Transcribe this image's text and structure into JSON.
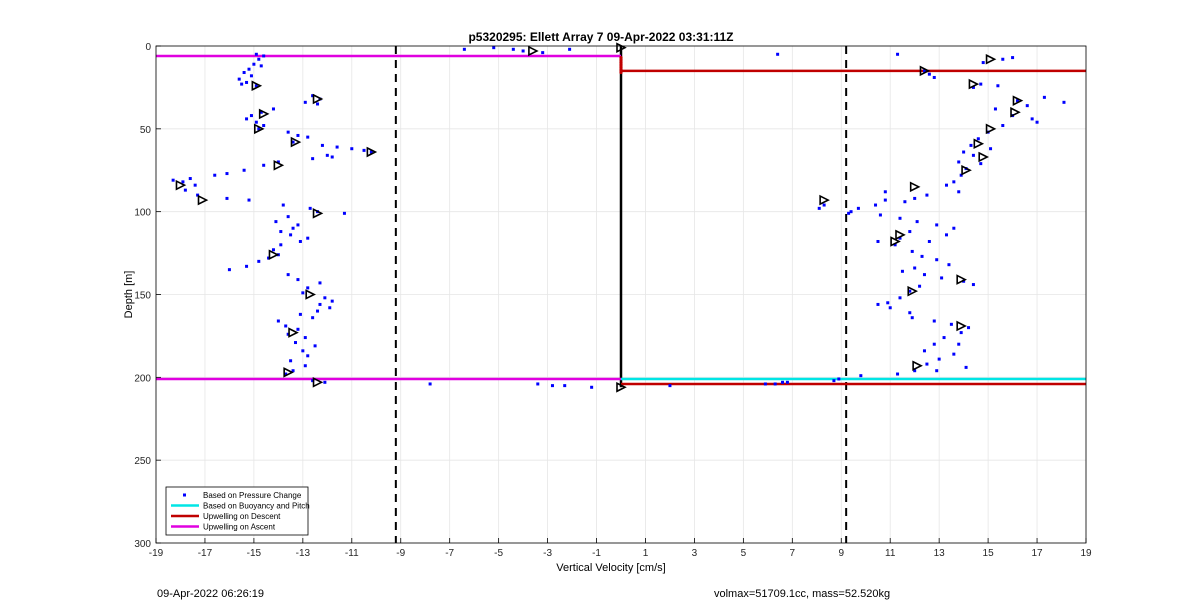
{
  "chart_data": {
    "type": "scatter",
    "title": "p5320295: Ellett Array 7 09-Apr-2022 03:31:11Z",
    "xlabel": "Vertical Velocity [cm/s]",
    "ylabel": "Depth [m]",
    "xlim": [
      -19,
      19
    ],
    "ylim": [
      0,
      300
    ],
    "y_reversed": true,
    "grid": true,
    "xticks": [
      -19,
      -17,
      -15,
      -13,
      -11,
      -9,
      -7,
      -5,
      -3,
      -1,
      1,
      3,
      5,
      7,
      9,
      11,
      13,
      15,
      17,
      19
    ],
    "yticks": [
      0,
      50,
      100,
      150,
      200,
      250,
      300
    ],
    "legend_position": "bottom-left",
    "legend": [
      {
        "label": "Based on Pressure Change",
        "color": "#0000ff",
        "kind": "marker"
      },
      {
        "label": "Based on Buoyancy and Pitch",
        "color": "#00e5e5",
        "kind": "line"
      },
      {
        "label": "Upwelling on Descent",
        "color": "#c00000",
        "kind": "line"
      },
      {
        "label": "Upwelling on Ascent",
        "color": "#e000e0",
        "kind": "line"
      }
    ],
    "vlines": [
      {
        "x": -9.2,
        "style": "dashed",
        "color": "#000000"
      },
      {
        "x": 9.2,
        "style": "dashed",
        "color": "#000000"
      },
      {
        "x": 0,
        "style": "solid",
        "color": "#000000",
        "y1": 0,
        "y2": 206
      }
    ],
    "hlines": [
      {
        "y": 6,
        "x1": -19,
        "x2": 0,
        "color": "#e000e0"
      },
      {
        "y": 201,
        "x1": -19,
        "x2": 0,
        "color": "#e000e0"
      },
      {
        "y": 15,
        "x1": 0,
        "x2": 19,
        "color": "#c00000"
      },
      {
        "y": 201,
        "x1": 0,
        "x2": 19,
        "color": "#00e5e5"
      },
      {
        "y": 204,
        "x1": 0,
        "x2": 19,
        "color": "#c00000"
      }
    ],
    "series": [
      {
        "name": "Based on Pressure Change",
        "color": "#0000ff",
        "points": [
          [
            -14.9,
            5
          ],
          [
            -14.6,
            6
          ],
          [
            -14.8,
            8
          ],
          [
            -15.0,
            11
          ],
          [
            -14.7,
            12
          ],
          [
            -15.2,
            14
          ],
          [
            -15.4,
            16
          ],
          [
            -15.1,
            18
          ],
          [
            -15.6,
            20
          ],
          [
            -15.3,
            22
          ],
          [
            -14.9,
            24
          ],
          [
            -15.5,
            23
          ],
          [
            -12.6,
            30
          ],
          [
            -12.3,
            32
          ],
          [
            -12.9,
            34
          ],
          [
            -12.4,
            35
          ],
          [
            -14.2,
            38
          ],
          [
            -14.7,
            40
          ],
          [
            -15.1,
            42
          ],
          [
            -15.3,
            44
          ],
          [
            -14.9,
            46
          ],
          [
            -14.6,
            48
          ],
          [
            -14.8,
            50
          ],
          [
            -13.6,
            52
          ],
          [
            -13.2,
            54
          ],
          [
            -12.8,
            55
          ],
          [
            -13.4,
            58
          ],
          [
            -12.2,
            60
          ],
          [
            -11.6,
            61
          ],
          [
            -11.0,
            62
          ],
          [
            -10.5,
            63
          ],
          [
            -10.2,
            64
          ],
          [
            -12.0,
            66
          ],
          [
            -11.8,
            67
          ],
          [
            -12.6,
            68
          ],
          [
            -14.0,
            70
          ],
          [
            -14.6,
            72
          ],
          [
            -15.4,
            75
          ],
          [
            -16.1,
            77
          ],
          [
            -16.6,
            78
          ],
          [
            -17.6,
            80
          ],
          [
            -18.3,
            81
          ],
          [
            -17.9,
            82
          ],
          [
            -17.4,
            84
          ],
          [
            -17.8,
            87
          ],
          [
            -17.3,
            90
          ],
          [
            -16.1,
            92
          ],
          [
            -15.2,
            93
          ],
          [
            -13.8,
            96
          ],
          [
            -12.7,
            98
          ],
          [
            -12.4,
            100
          ],
          [
            -11.3,
            101
          ],
          [
            -13.6,
            103
          ],
          [
            -14.1,
            106
          ],
          [
            -13.2,
            108
          ],
          [
            -13.4,
            110
          ],
          [
            -13.9,
            112
          ],
          [
            -13.5,
            114
          ],
          [
            -12.8,
            116
          ],
          [
            -13.1,
            118
          ],
          [
            -13.9,
            120
          ],
          [
            -14.2,
            123
          ],
          [
            -14.0,
            126
          ],
          [
            -14.4,
            128
          ],
          [
            -14.8,
            130
          ],
          [
            -15.3,
            133
          ],
          [
            -16.0,
            135
          ],
          [
            -13.6,
            138
          ],
          [
            -13.2,
            141
          ],
          [
            -12.3,
            143
          ],
          [
            -12.8,
            146
          ],
          [
            -13.0,
            149
          ],
          [
            -12.1,
            152
          ],
          [
            -11.8,
            154
          ],
          [
            -12.3,
            156
          ],
          [
            -11.9,
            158
          ],
          [
            -12.4,
            160
          ],
          [
            -13.1,
            162
          ],
          [
            -12.6,
            164
          ],
          [
            -14.0,
            166
          ],
          [
            -13.7,
            169
          ],
          [
            -13.2,
            171
          ],
          [
            -13.6,
            174
          ],
          [
            -12.9,
            176
          ],
          [
            -13.3,
            179
          ],
          [
            -12.5,
            181
          ],
          [
            -13.0,
            184
          ],
          [
            -12.8,
            187
          ],
          [
            -13.5,
            190
          ],
          [
            -12.9,
            193
          ],
          [
            -13.4,
            196
          ],
          [
            -13.7,
            198
          ],
          [
            -12.6,
            202
          ],
          [
            -12.1,
            203
          ],
          [
            -5.2,
            1
          ],
          [
            -4.4,
            2
          ],
          [
            -4.0,
            3
          ],
          [
            -2.1,
            2
          ],
          [
            -3.2,
            4
          ],
          [
            -6.4,
            2
          ],
          [
            -7.8,
            204
          ],
          [
            -3.4,
            204
          ],
          [
            -2.8,
            205
          ],
          [
            -2.3,
            205
          ],
          [
            -1.2,
            206
          ],
          [
            6.4,
            5
          ],
          [
            5.9,
            204
          ],
          [
            6.3,
            204
          ],
          [
            6.6,
            203
          ],
          [
            6.8,
            203
          ],
          [
            2.0,
            205
          ],
          [
            9.8,
            199
          ],
          [
            8.7,
            202
          ],
          [
            8.9,
            201
          ],
          [
            11.3,
            5
          ],
          [
            12.4,
            15
          ],
          [
            12.6,
            17
          ],
          [
            12.8,
            19
          ],
          [
            14.8,
            10
          ],
          [
            15.6,
            8
          ],
          [
            16.0,
            7
          ],
          [
            14.4,
            25
          ],
          [
            14.7,
            23
          ],
          [
            15.4,
            24
          ],
          [
            16.2,
            33
          ],
          [
            16.6,
            36
          ],
          [
            17.3,
            31
          ],
          [
            18.1,
            34
          ],
          [
            15.3,
            38
          ],
          [
            16.0,
            42
          ],
          [
            16.8,
            44
          ],
          [
            17.0,
            46
          ],
          [
            15.6,
            48
          ],
          [
            15.0,
            52
          ],
          [
            14.6,
            56
          ],
          [
            14.3,
            60
          ],
          [
            15.1,
            62
          ],
          [
            14.0,
            64
          ],
          [
            14.4,
            66
          ],
          [
            13.8,
            70
          ],
          [
            14.7,
            71
          ],
          [
            14.1,
            74
          ],
          [
            13.9,
            78
          ],
          [
            13.6,
            82
          ],
          [
            13.3,
            84
          ],
          [
            13.8,
            88
          ],
          [
            12.5,
            90
          ],
          [
            12.0,
            92
          ],
          [
            11.6,
            94
          ],
          [
            10.8,
            93
          ],
          [
            10.4,
            96
          ],
          [
            9.7,
            98
          ],
          [
            8.3,
            96
          ],
          [
            8.1,
            98
          ],
          [
            9.3,
            101
          ],
          [
            10.6,
            102
          ],
          [
            11.4,
            104
          ],
          [
            12.1,
            106
          ],
          [
            12.9,
            108
          ],
          [
            13.6,
            110
          ],
          [
            11.8,
            112
          ],
          [
            11.4,
            116
          ],
          [
            12.6,
            118
          ],
          [
            13.3,
            114
          ],
          [
            10.5,
            118
          ],
          [
            11.2,
            120
          ],
          [
            11.9,
            124
          ],
          [
            12.3,
            127
          ],
          [
            12.9,
            129
          ],
          [
            13.4,
            132
          ],
          [
            12.0,
            134
          ],
          [
            11.5,
            136
          ],
          [
            12.4,
            138
          ],
          [
            13.1,
            140
          ],
          [
            14.0,
            142
          ],
          [
            12.2,
            145
          ],
          [
            11.8,
            148
          ],
          [
            11.4,
            152
          ],
          [
            10.9,
            155
          ],
          [
            10.5,
            156
          ],
          [
            11.0,
            158
          ],
          [
            11.8,
            161
          ],
          [
            11.9,
            164
          ],
          [
            12.8,
            166
          ],
          [
            13.5,
            168
          ],
          [
            14.2,
            170
          ],
          [
            13.9,
            173
          ],
          [
            13.2,
            176
          ],
          [
            12.8,
            180
          ],
          [
            12.4,
            184
          ],
          [
            13.6,
            186
          ],
          [
            13.0,
            189
          ],
          [
            12.5,
            192
          ],
          [
            14.1,
            194
          ],
          [
            12.9,
            196
          ],
          [
            11.3,
            198
          ],
          [
            14.4,
            144
          ],
          [
            10.8,
            88
          ],
          [
            9.4,
            100
          ],
          [
            13.8,
            180
          ],
          [
            12.0,
            196
          ]
        ]
      },
      {
        "name": "Based on Buoyancy and Pitch",
        "color": "#000000",
        "marker": "triangle",
        "points": [
          [
            -3.6,
            3
          ],
          [
            -14.9,
            24
          ],
          [
            -12.4,
            32
          ],
          [
            -14.6,
            41
          ],
          [
            -14.8,
            50
          ],
          [
            -13.3,
            58
          ],
          [
            -10.2,
            64
          ],
          [
            -14.0,
            72
          ],
          [
            -18.0,
            84
          ],
          [
            -17.1,
            93
          ],
          [
            -12.4,
            101
          ],
          [
            -14.2,
            126
          ],
          [
            -12.7,
            150
          ],
          [
            -13.4,
            173
          ],
          [
            -13.6,
            197
          ],
          [
            -12.4,
            203
          ],
          [
            0,
            1
          ],
          [
            0,
            206
          ],
          [
            15.1,
            8
          ],
          [
            12.4,
            15
          ],
          [
            14.4,
            23
          ],
          [
            16.2,
            33
          ],
          [
            16.1,
            40
          ],
          [
            15.1,
            50
          ],
          [
            14.6,
            59
          ],
          [
            14.8,
            67
          ],
          [
            14.1,
            75
          ],
          [
            12.0,
            85
          ],
          [
            8.3,
            93
          ],
          [
            11.4,
            114
          ],
          [
            11.2,
            118
          ],
          [
            13.9,
            141
          ],
          [
            11.9,
            148
          ],
          [
            13.9,
            169
          ],
          [
            12.1,
            193
          ]
        ]
      },
      {
        "name": "Upwelling on Descent",
        "color": "#c00000",
        "marker": "dots",
        "points": [
          [
            0,
            7
          ],
          [
            0,
            8
          ],
          [
            0,
            9
          ],
          [
            0,
            10
          ],
          [
            0,
            11
          ],
          [
            0,
            12
          ],
          [
            0,
            13
          ],
          [
            0,
            14
          ],
          [
            0,
            15
          ],
          [
            0,
            16
          ]
        ]
      }
    ]
  },
  "footer": {
    "datetime": "09-Apr-2022 06:26:19",
    "vol_mass": "volmax=51709.1cc, mass=52.520kg"
  }
}
